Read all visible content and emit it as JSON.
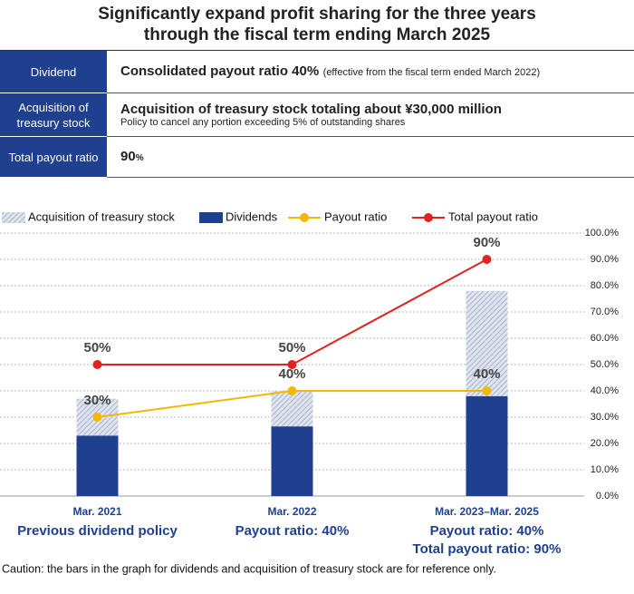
{
  "header": {
    "title": [
      "Significantly expand profit sharing for the three years",
      "through the fiscal term ending March 2025"
    ]
  },
  "table": {
    "rows": [
      {
        "label": "Dividend",
        "main": "Consolidated payout ratio 40%",
        "note": "(effective from the fiscal term ended March 2022)"
      },
      {
        "label": "Acquisition of treasury stock",
        "main": "Acquisition of treasury stock totaling about ¥30,000 million",
        "note": "Policy to cancel any portion exceeding 5% of outstanding shares"
      },
      {
        "label": "Total payout ratio",
        "main": "90",
        "unit": "%"
      }
    ]
  },
  "chart_data": {
    "type": "combo",
    "categories": [
      "Mar. 2021",
      "Mar. 2022",
      "Mar. 2023–Mar. 2025"
    ],
    "category_notes": [
      [
        "Previous dividend policy"
      ],
      [
        "Payout ratio: 40%"
      ],
      [
        "Payout ratio: 40%",
        "Total payout ratio: 90%"
      ]
    ],
    "series": [
      {
        "name": "Acquisition of treasury stock",
        "type": "bar",
        "color": "#9aa8c4",
        "values": [
          14,
          13.5,
          40
        ]
      },
      {
        "name": "Dividends",
        "type": "bar",
        "color": "#1f3f8f",
        "values": [
          23,
          26.5,
          38
        ]
      },
      {
        "name": "Payout ratio",
        "type": "line",
        "color": "#f5b800",
        "values": [
          30,
          40,
          40
        ],
        "value_labels": [
          "30%",
          "40%",
          "40%"
        ]
      },
      {
        "name": "Total payout ratio",
        "type": "line",
        "color": "#e0231e",
        "values": [
          50,
          50,
          90
        ],
        "value_labels": [
          "50%",
          "50%",
          "90%"
        ]
      }
    ],
    "ylim": [
      0,
      100
    ],
    "yticks": [
      {
        "value": 0,
        "label": "0.0%"
      },
      {
        "value": 10,
        "label": "10.0%"
      },
      {
        "value": 20,
        "label": "20.0%"
      },
      {
        "value": 30,
        "label": "30.0%"
      },
      {
        "value": 40,
        "label": "40.0%"
      },
      {
        "value": 50,
        "label": "50.0%"
      },
      {
        "value": 60,
        "label": "60.0%"
      },
      {
        "value": 70,
        "label": "70.0%"
      },
      {
        "value": 80,
        "label": "80.0%"
      },
      {
        "value": 90,
        "label": "90.0%"
      },
      {
        "value": 100,
        "label": "100.0%"
      }
    ],
    "grid": true
  },
  "caution": "Caution: the bars in the graph for dividends and acquisition of treasury stock are for reference only."
}
